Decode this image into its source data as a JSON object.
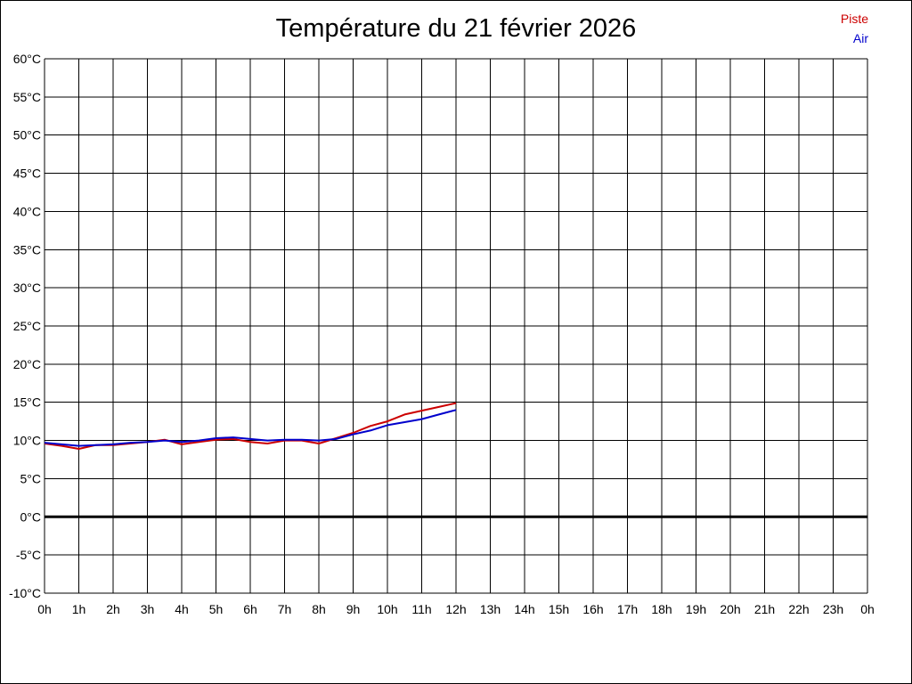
{
  "chart_data": {
    "type": "line",
    "title": "Température du 21 février 2026",
    "xlabel": "",
    "ylabel": "",
    "x_ticks": [
      "0h",
      "1h",
      "2h",
      "3h",
      "4h",
      "5h",
      "6h",
      "7h",
      "8h",
      "9h",
      "10h",
      "11h",
      "12h",
      "13h",
      "14h",
      "15h",
      "16h",
      "17h",
      "18h",
      "19h",
      "20h",
      "21h",
      "22h",
      "23h",
      "0h"
    ],
    "xlim": [
      0,
      24
    ],
    "y_ticks": [
      "60°C",
      "55°C",
      "50°C",
      "45°C",
      "40°C",
      "35°C",
      "30°C",
      "25°C",
      "20°C",
      "15°C",
      "10°C",
      "5°C",
      "0°C",
      "-5°C",
      "-10°C"
    ],
    "ylim": [
      -10,
      60
    ],
    "grid": true,
    "zero_line": 0,
    "legend_position": "top-right",
    "series": [
      {
        "name": "Piste",
        "color": "#cc0000",
        "x": [
          0,
          0.5,
          1,
          1.5,
          2,
          2.5,
          3,
          3.5,
          4,
          4.5,
          5,
          5.5,
          6,
          6.5,
          7,
          7.5,
          8,
          8.5,
          9,
          9.5,
          10,
          10.5,
          11,
          11.5,
          12
        ],
        "y": [
          9.6,
          9.3,
          8.9,
          9.4,
          9.4,
          9.6,
          9.8,
          10.1,
          9.5,
          9.8,
          10.1,
          10.2,
          9.8,
          9.6,
          10.0,
          10.0,
          9.6,
          10.3,
          11.0,
          11.9,
          12.5,
          13.4,
          13.9,
          14.4,
          14.9
        ]
      },
      {
        "name": "Air",
        "color": "#0000cc",
        "x": [
          0,
          0.5,
          1,
          1.5,
          2,
          2.5,
          3,
          3.5,
          4,
          4.5,
          5,
          5.5,
          6,
          6.5,
          7,
          7.5,
          8,
          8.5,
          9,
          9.5,
          10,
          10.5,
          11,
          11.5,
          12
        ],
        "y": [
          9.7,
          9.5,
          9.3,
          9.4,
          9.5,
          9.7,
          9.8,
          10.0,
          9.8,
          10.0,
          10.3,
          10.4,
          10.2,
          10.0,
          10.1,
          10.1,
          10.0,
          10.2,
          10.8,
          11.3,
          12.0,
          12.4,
          12.8,
          13.4,
          14.0
        ]
      }
    ]
  }
}
